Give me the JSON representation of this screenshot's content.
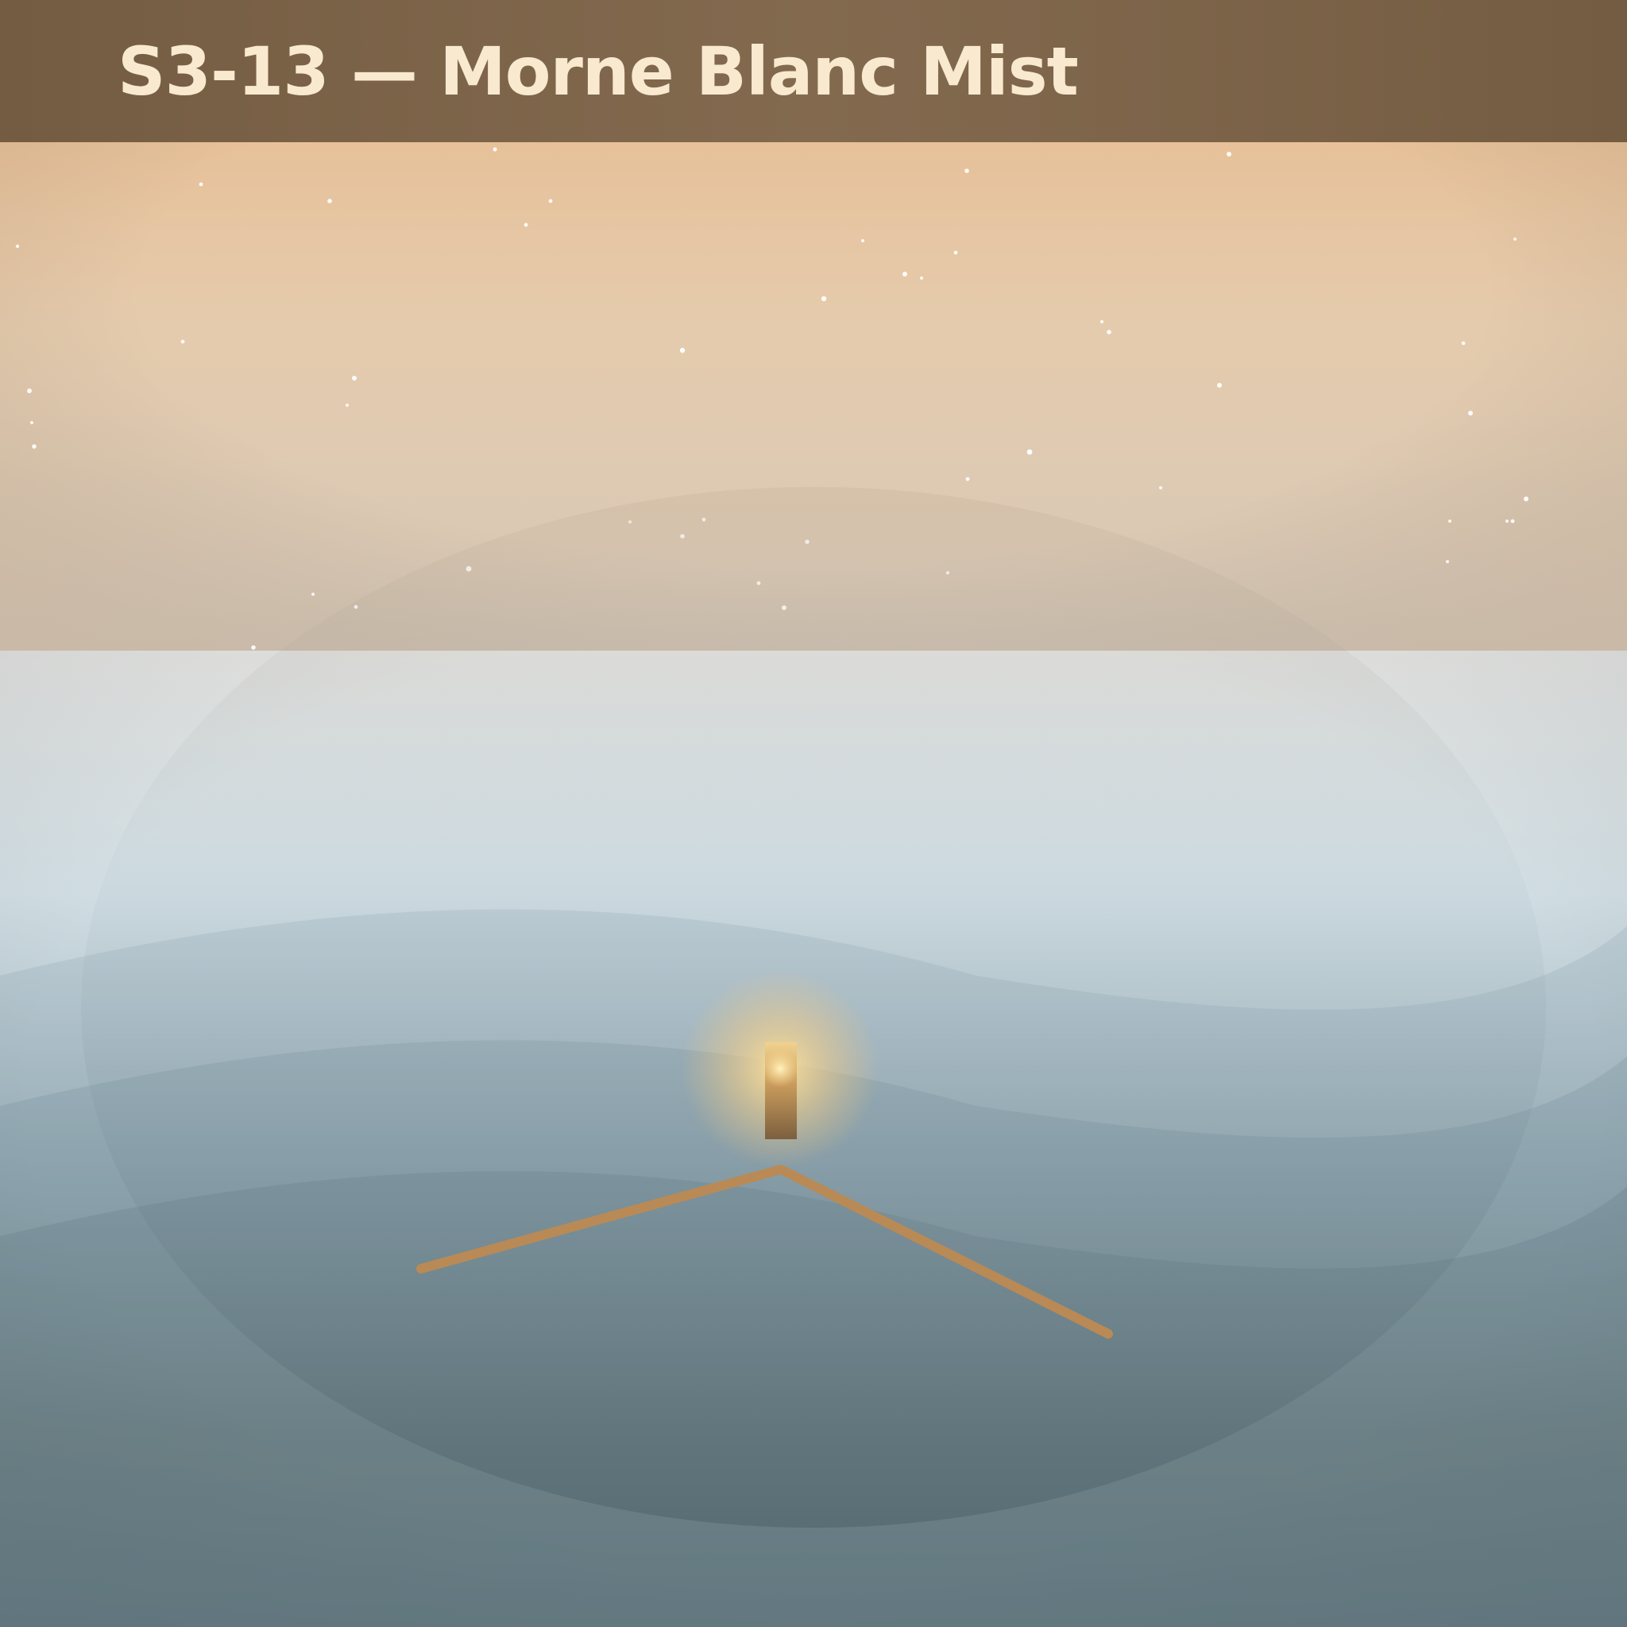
{
  "level": {
    "title": "S3-13 — Morne Blanc Mist"
  },
  "colors": {
    "header_bg": "#7e664b",
    "title_text": "#f8e9cf",
    "sky_top": "#e9bb8d",
    "sky_bottom": "#d3c5b5",
    "mist": "#dfe3e3",
    "water_deep": "#677b80",
    "path": "#b98a55",
    "lantern_glow": "#ffdc8e"
  },
  "icons": {
    "lantern": "lantern-icon",
    "stars": "star-icon"
  }
}
